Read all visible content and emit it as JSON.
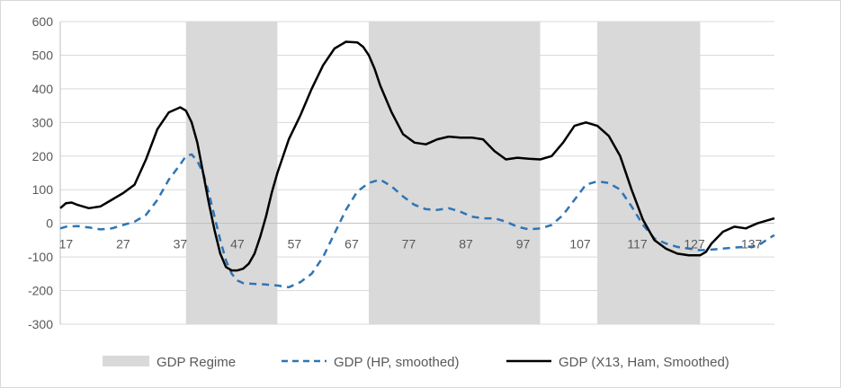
{
  "chart_data": {
    "type": "line",
    "title": "",
    "xlabel": "",
    "ylabel": "",
    "xlim": [
      16,
      141
    ],
    "ylim": [
      -300,
      600
    ],
    "y_ticks": [
      -300,
      -200,
      -100,
      0,
      100,
      200,
      300,
      400,
      500,
      600
    ],
    "x_ticks": [
      17,
      27,
      37,
      47,
      57,
      67,
      77,
      87,
      97,
      107,
      117,
      127,
      137
    ],
    "x_axis_crosses_at": 0,
    "grid": "horizontal",
    "legend_position": "bottom",
    "regime": {
      "name": "GDP Regime",
      "color": "#d9d9d9",
      "shaded_ranges": [
        [
          38,
          54
        ],
        [
          70,
          100
        ],
        [
          110,
          128
        ]
      ]
    },
    "series": [
      {
        "name": "GDP (HP, smoothed)",
        "color": "#2e75b6",
        "style": "dashed",
        "x": [
          16,
          17,
          19,
          21,
          23,
          25,
          27,
          29,
          31,
          33,
          35,
          37,
          38,
          39,
          40,
          41,
          42,
          43,
          44,
          45,
          46,
          47,
          48,
          50,
          52,
          54,
          56,
          58,
          60,
          62,
          64,
          66,
          68,
          70,
          72,
          74,
          76,
          78,
          80,
          82,
          84,
          86,
          88,
          90,
          92,
          94,
          96,
          98,
          100,
          102,
          104,
          106,
          108,
          110,
          112,
          114,
          116,
          118,
          120,
          122,
          124,
          126,
          128,
          130,
          132,
          134,
          136,
          138,
          140,
          141
        ],
        "y": [
          -15,
          -10,
          -8,
          -12,
          -18,
          -15,
          -5,
          5,
          25,
          70,
          130,
          175,
          200,
          205,
          185,
          150,
          90,
          20,
          -50,
          -110,
          -150,
          -170,
          -178,
          -180,
          -182,
          -185,
          -190,
          -175,
          -150,
          -100,
          -30,
          40,
          95,
          120,
          130,
          110,
          80,
          55,
          42,
          40,
          45,
          35,
          20,
          15,
          15,
          5,
          -10,
          -18,
          -15,
          -5,
          25,
          70,
          115,
          125,
          120,
          100,
          50,
          -5,
          -45,
          -60,
          -70,
          -75,
          -80,
          -78,
          -75,
          -72,
          -70,
          -68,
          -45,
          -35
        ]
      },
      {
        "name": "GDP (X13, Ham, Smoothed)",
        "color": "#000000",
        "style": "solid",
        "x": [
          16,
          17,
          18,
          19,
          21,
          23,
          25,
          27,
          29,
          31,
          33,
          35,
          37,
          38,
          39,
          40,
          41,
          42,
          43,
          44,
          45,
          46,
          47,
          48,
          49,
          50,
          51,
          52,
          53,
          54,
          56,
          58,
          60,
          62,
          64,
          66,
          68,
          69,
          70,
          71,
          72,
          74,
          76,
          78,
          80,
          82,
          84,
          86,
          88,
          90,
          92,
          94,
          96,
          98,
          100,
          102,
          104,
          106,
          108,
          110,
          112,
          114,
          116,
          118,
          120,
          122,
          124,
          126,
          128,
          129,
          130,
          132,
          134,
          136,
          138,
          140,
          141
        ],
        "y": [
          45,
          60,
          62,
          55,
          45,
          50,
          70,
          90,
          115,
          190,
          280,
          330,
          345,
          335,
          300,
          240,
          150,
          60,
          -20,
          -90,
          -130,
          -140,
          -140,
          -135,
          -120,
          -90,
          -40,
          20,
          90,
          150,
          250,
          320,
          400,
          470,
          520,
          540,
          538,
          525,
          500,
          460,
          410,
          330,
          265,
          240,
          235,
          250,
          258,
          255,
          255,
          250,
          215,
          190,
          195,
          192,
          190,
          200,
          240,
          290,
          300,
          290,
          260,
          200,
          100,
          10,
          -50,
          -75,
          -90,
          -95,
          -95,
          -85,
          -60,
          -25,
          -10,
          -15,
          0,
          10,
          15
        ]
      }
    ]
  }
}
